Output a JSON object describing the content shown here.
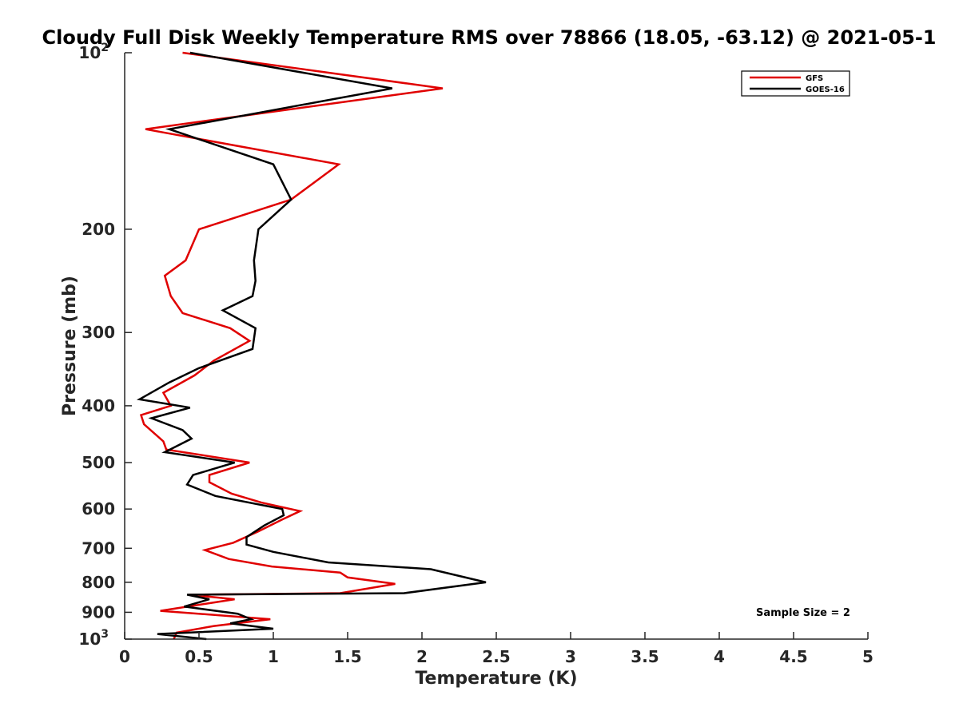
{
  "chart_data": {
    "type": "line",
    "title": "Cloudy Full Disk Weekly Temperature RMS over 78866 (18.05, -63.12) @ 2021-05-1",
    "xlabel": "Temperature (K)",
    "ylabel": "Pressure (mb)",
    "xlim": [
      0,
      5
    ],
    "ylim": [
      100,
      1000
    ],
    "y_scale": "log",
    "y_reversed": true,
    "grid": false,
    "legend_position": "top-right",
    "x_ticks": [
      "0",
      "0.5",
      "1",
      "1.5",
      "2",
      "2.5",
      "3",
      "3.5",
      "4",
      "4.5",
      "5"
    ],
    "y_ticks": [
      {
        "value": 100,
        "label": "10",
        "sup": "2"
      },
      {
        "value": 200,
        "label": "200",
        "sup": ""
      },
      {
        "value": 300,
        "label": "300",
        "sup": ""
      },
      {
        "value": 400,
        "label": "400",
        "sup": ""
      },
      {
        "value": 500,
        "label": "500",
        "sup": ""
      },
      {
        "value": 600,
        "label": "600",
        "sup": ""
      },
      {
        "value": 700,
        "label": "700",
        "sup": ""
      },
      {
        "value": 800,
        "label": "800",
        "sup": ""
      },
      {
        "value": 900,
        "label": "900",
        "sup": ""
      },
      {
        "value": 1000,
        "label": "10",
        "sup": "3"
      }
    ],
    "series": [
      {
        "name": "GFS",
        "color": "#e00000",
        "points": [
          [
            0.39,
            100
          ],
          [
            2.14,
            115
          ],
          [
            0.14,
            135
          ],
          [
            1.44,
            155
          ],
          [
            1.12,
            178
          ],
          [
            0.5,
            200
          ],
          [
            0.41,
            226
          ],
          [
            0.27,
            240
          ],
          [
            0.31,
            260
          ],
          [
            0.39,
            278
          ],
          [
            0.71,
            295
          ],
          [
            0.84,
            310
          ],
          [
            0.6,
            335
          ],
          [
            0.47,
            355
          ],
          [
            0.26,
            380
          ],
          [
            0.31,
            400
          ],
          [
            0.11,
            415
          ],
          [
            0.13,
            430
          ],
          [
            0.26,
            460
          ],
          [
            0.28,
            475
          ],
          [
            0.84,
            500
          ],
          [
            0.57,
            525
          ],
          [
            0.57,
            540
          ],
          [
            0.72,
            565
          ],
          [
            0.92,
            585
          ],
          [
            1.18,
            605
          ],
          [
            1.06,
            625
          ],
          [
            0.9,
            655
          ],
          [
            0.73,
            685
          ],
          [
            0.54,
            705
          ],
          [
            0.7,
            730
          ],
          [
            0.99,
            752
          ],
          [
            1.45,
            770
          ],
          [
            1.5,
            785
          ],
          [
            1.82,
            805
          ],
          [
            1.45,
            835
          ],
          [
            0.43,
            840
          ],
          [
            0.74,
            855
          ],
          [
            0.55,
            870
          ],
          [
            0.24,
            895
          ],
          [
            0.98,
            925
          ],
          [
            0.6,
            950
          ],
          [
            0.35,
            975
          ],
          [
            0.33,
            1000
          ]
        ]
      },
      {
        "name": "GOES-16",
        "color": "#000000",
        "points": [
          [
            0.44,
            100
          ],
          [
            1.8,
            115
          ],
          [
            0.3,
            135
          ],
          [
            1.0,
            155
          ],
          [
            1.12,
            178
          ],
          [
            0.9,
            200
          ],
          [
            0.87,
            226
          ],
          [
            0.88,
            245
          ],
          [
            0.86,
            260
          ],
          [
            0.66,
            275
          ],
          [
            0.88,
            295
          ],
          [
            0.86,
            320
          ],
          [
            0.5,
            345
          ],
          [
            0.3,
            365
          ],
          [
            0.1,
            390
          ],
          [
            0.44,
            403
          ],
          [
            0.18,
            420
          ],
          [
            0.39,
            440
          ],
          [
            0.45,
            455
          ],
          [
            0.27,
            480
          ],
          [
            0.74,
            500
          ],
          [
            0.46,
            525
          ],
          [
            0.42,
            545
          ],
          [
            0.61,
            570
          ],
          [
            1.06,
            600
          ],
          [
            1.07,
            615
          ],
          [
            0.94,
            640
          ],
          [
            0.82,
            670
          ],
          [
            0.82,
            690
          ],
          [
            1.0,
            710
          ],
          [
            1.37,
            740
          ],
          [
            2.06,
            760
          ],
          [
            2.43,
            800
          ],
          [
            1.88,
            835
          ],
          [
            0.42,
            840
          ],
          [
            0.57,
            855
          ],
          [
            0.4,
            880
          ],
          [
            0.76,
            905
          ],
          [
            0.85,
            925
          ],
          [
            0.71,
            940
          ],
          [
            1.0,
            960
          ],
          [
            0.22,
            980
          ],
          [
            0.55,
            1000
          ]
        ]
      }
    ],
    "annotations": [
      {
        "text": "Sample Size = 2"
      }
    ]
  }
}
